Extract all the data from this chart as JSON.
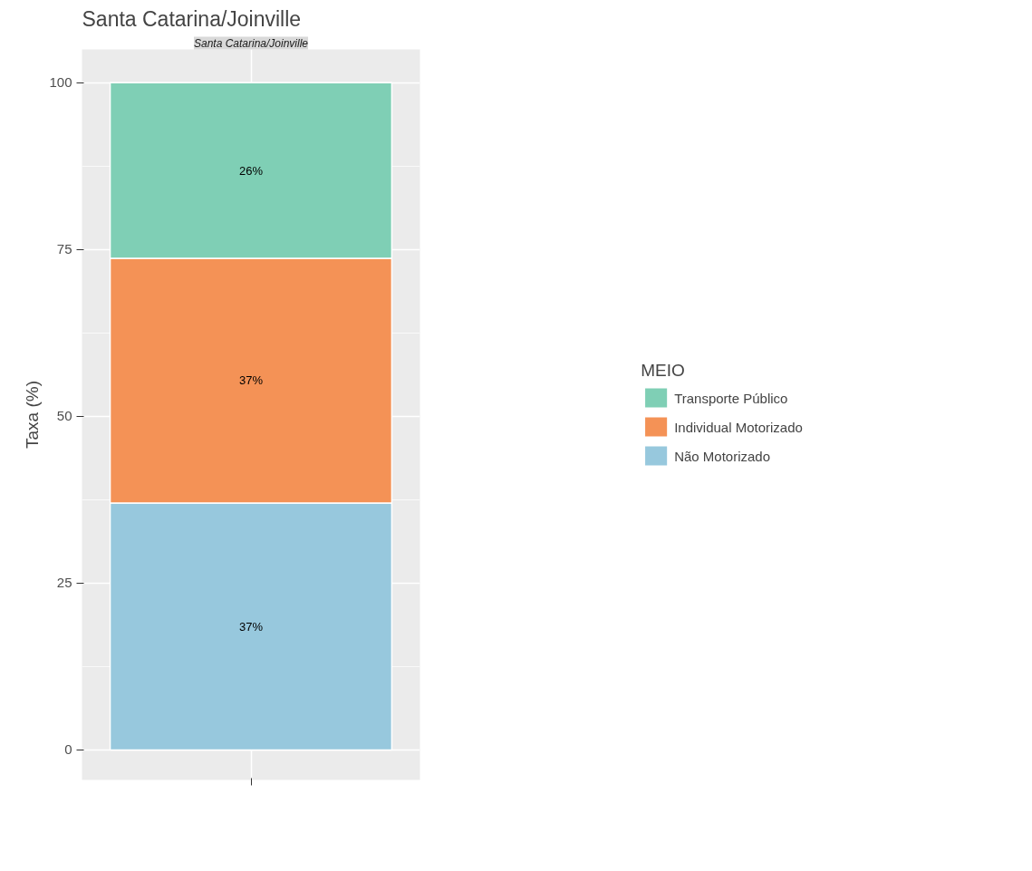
{
  "chart_data": {
    "type": "bar",
    "stacked": true,
    "title": "Santa Catarina/Joinville",
    "subtitle": "Santa Catarina/Joinville",
    "ylabel": "Taxa (%)",
    "legend_title": "MEIO",
    "categories": [
      null
    ],
    "series": [
      {
        "name": "Não Motorizado",
        "color": "#97c8dd",
        "values": [
          37
        ],
        "value_labels": [
          "37%"
        ]
      },
      {
        "name": "Individual Motorizado",
        "color": "#f49256",
        "values": [
          36.7
        ],
        "value_labels": [
          "37%"
        ]
      },
      {
        "name": "Transporte Público",
        "color": "#7fcfb5",
        "values": [
          26.3
        ],
        "value_labels": [
          "26%"
        ]
      }
    ],
    "ylim": [
      -4.5,
      105
    ],
    "yticks": [
      0,
      25,
      50,
      75,
      100
    ],
    "grid": true,
    "legend": "right"
  }
}
